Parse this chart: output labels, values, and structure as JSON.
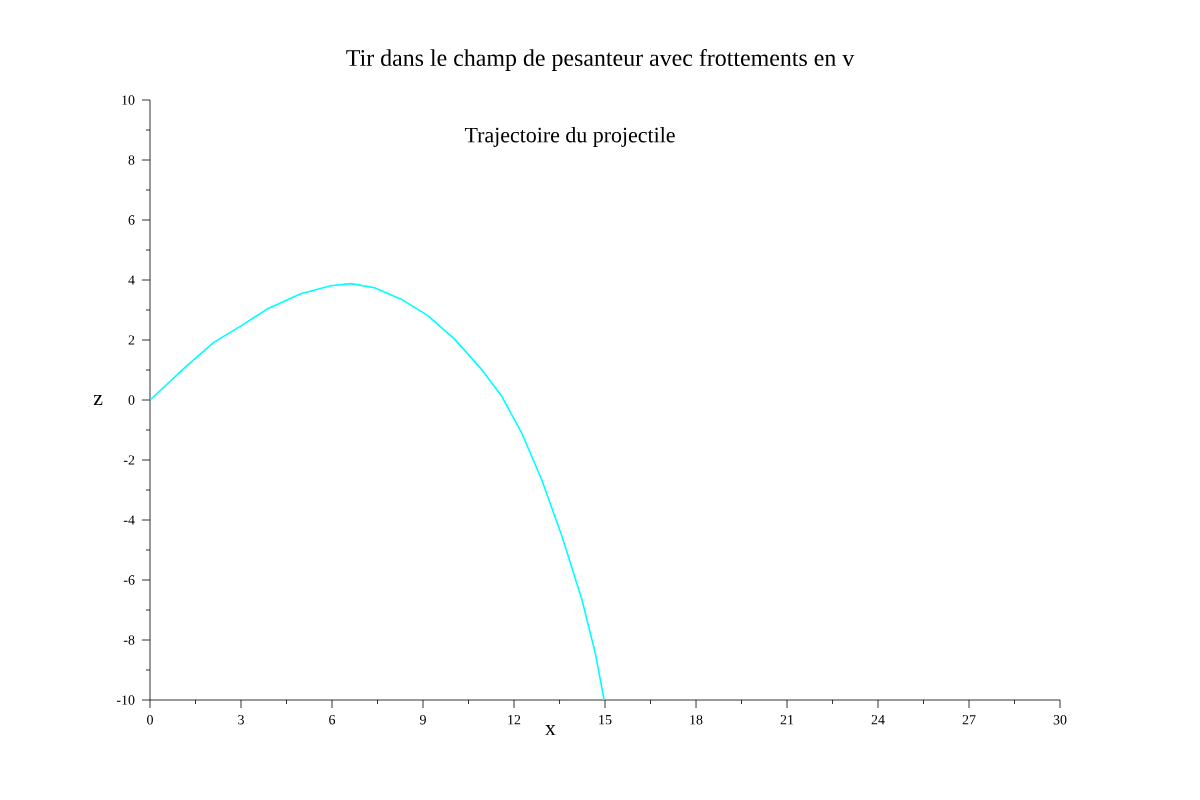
{
  "chart_data": {
    "type": "line",
    "title": "Tir dans le champ de pesanteur avec frottements en v",
    "xlabel": "x",
    "ylabel": "z",
    "annotations": [
      "Trajectoire du projectile"
    ],
    "x": [
      0,
      1.21,
      2.1,
      3,
      3.86,
      4.97,
      5.96,
      6.62,
      7.4,
      8.28,
      9.16,
      10.04,
      10.93,
      11.59,
      12.25,
      12.91,
      13.58,
      14.24,
      14.68,
      14.97
    ],
    "series": [
      {
        "color": "#00ffff",
        "values": [
          0,
          1.14,
          1.92,
          2.47,
          3.03,
          3.54,
          3.81,
          3.88,
          3.74,
          3.36,
          2.81,
          2.03,
          1.02,
          0.13,
          -1.09,
          -2.65,
          -4.54,
          -6.66,
          -8.44,
          -10.0
        ]
      }
    ],
    "xlim": [
      0,
      30
    ],
    "ylim": [
      -10,
      10
    ],
    "xticks": [
      0,
      3,
      6,
      9,
      12,
      15,
      18,
      21,
      24,
      27,
      30
    ],
    "yticks": [
      -10,
      -8,
      -6,
      -4,
      -2,
      0,
      2,
      4,
      6,
      8,
      10
    ],
    "grid": false,
    "marker": "none",
    "line_style": "solid"
  }
}
